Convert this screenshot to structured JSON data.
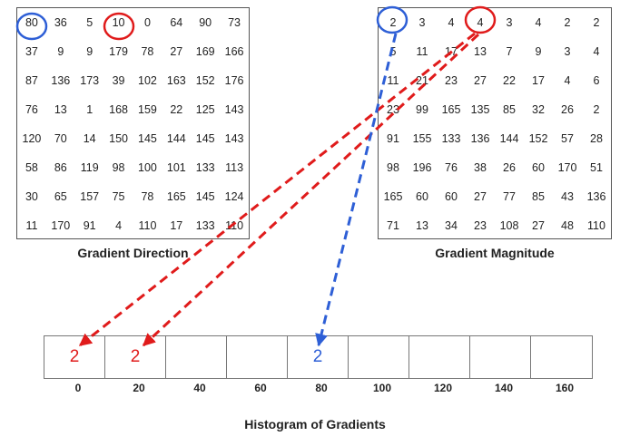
{
  "gradient_direction": {
    "title": "Gradient Direction",
    "rows": [
      [
        "80",
        "36",
        "5",
        "10",
        "0",
        "64",
        "90",
        "73"
      ],
      [
        "37",
        "9",
        "9",
        "179",
        "78",
        "27",
        "169",
        "166"
      ],
      [
        "87",
        "136",
        "173",
        "39",
        "102",
        "163",
        "152",
        "176"
      ],
      [
        "76",
        "13",
        "1",
        "168",
        "159",
        "22",
        "125",
        "143"
      ],
      [
        "120",
        "70",
        "14",
        "150",
        "145",
        "144",
        "145",
        "143"
      ],
      [
        "58",
        "86",
        "119",
        "98",
        "100",
        "101",
        "133",
        "113"
      ],
      [
        "30",
        "65",
        "157",
        "75",
        "78",
        "165",
        "145",
        "124"
      ],
      [
        "11",
        "170",
        "91",
        "4",
        "110",
        "17",
        "133",
        "110"
      ]
    ]
  },
  "gradient_magnitude": {
    "title": "Gradient Magnitude",
    "rows": [
      [
        "2",
        "3",
        "4",
        "4",
        "3",
        "4",
        "2",
        "2"
      ],
      [
        "5",
        "11",
        "17",
        "13",
        "7",
        "9",
        "3",
        "4"
      ],
      [
        "11",
        "21",
        "23",
        "27",
        "22",
        "17",
        "4",
        "6"
      ],
      [
        "23",
        "99",
        "165",
        "135",
        "85",
        "32",
        "26",
        "2"
      ],
      [
        "91",
        "155",
        "133",
        "136",
        "144",
        "152",
        "57",
        "28"
      ],
      [
        "98",
        "196",
        "76",
        "38",
        "26",
        "60",
        "170",
        "51"
      ],
      [
        "165",
        "60",
        "60",
        "27",
        "77",
        "85",
        "43",
        "136"
      ],
      [
        "71",
        "13",
        "34",
        "23",
        "108",
        "27",
        "48",
        "110"
      ]
    ]
  },
  "highlights": [
    {
      "name": "blue-circle",
      "row": 0,
      "col": 0,
      "color": "#2e5fd6"
    },
    {
      "name": "red-circle",
      "row": 0,
      "col": 3,
      "color": "#e01b1b"
    }
  ],
  "histogram": {
    "title": "Histogram of Gradients",
    "bins": [
      {
        "label": "0",
        "value": "2",
        "color": "#e01b1b"
      },
      {
        "label": "20",
        "value": "2",
        "color": "#e01b1b"
      },
      {
        "label": "40",
        "value": "",
        "color": ""
      },
      {
        "label": "60",
        "value": "",
        "color": ""
      },
      {
        "label": "80",
        "value": "2",
        "color": "#2e5fd6"
      },
      {
        "label": "100",
        "value": "",
        "color": ""
      },
      {
        "label": "120",
        "value": "",
        "color": ""
      },
      {
        "label": "140",
        "value": "",
        "color": ""
      },
      {
        "label": "160",
        "value": "",
        "color": ""
      }
    ]
  },
  "colors": {
    "red": "#e01b1b",
    "blue": "#2e5fd6"
  }
}
